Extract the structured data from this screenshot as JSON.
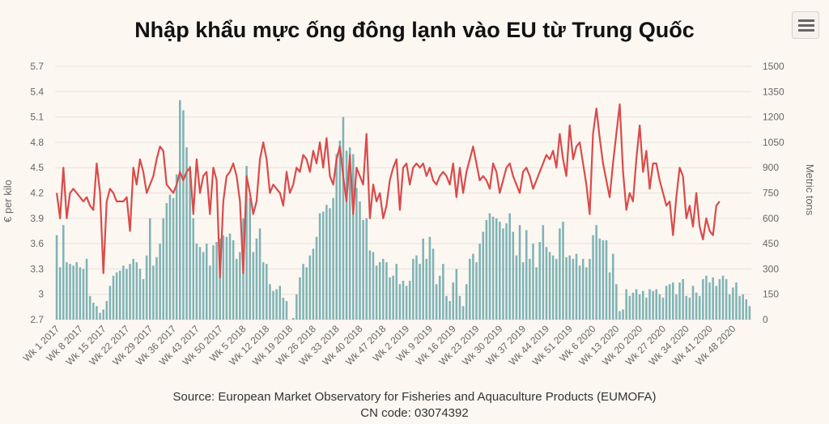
{
  "title": "Nhập khẩu mực ống đông lạnh vào EU từ Trung Quốc",
  "source": "Source: European Market Observatory for Fisheries and Aquaculture Products (EUMOFA)",
  "cn_code": "CN code: 03074392",
  "colors": {
    "bars": "#7fb3b5",
    "line": "#d94b4b",
    "grid": "#e6e1dc",
    "background": "#fdf7f1"
  },
  "icons": {
    "menu": "hamburger-menu-icon"
  },
  "chart_data": {
    "type": "bar",
    "combo": "bar + line, dual y-axis",
    "ylabel_left": "€ per kilo",
    "ylabel_right": "Metric tons",
    "y_left_ticks": [
      "5.7",
      "5.4",
      "5.1",
      "4.8",
      "4.5",
      "4.2",
      "3.9",
      "3.6",
      "3.3",
      "3",
      "2.7"
    ],
    "y_right_ticks": [
      "1500",
      "1350",
      "1200",
      "1050",
      "900",
      "750",
      "600",
      "450",
      "300",
      "150",
      "0"
    ],
    "y_left_range": [
      2.7,
      5.7
    ],
    "y_right_range": [
      0,
      1500
    ],
    "grid": true,
    "x_tick_labels": [
      "Wk 1 2017",
      "Wk 8 2017",
      "Wk 15 2017",
      "Wk 22 2017",
      "Wk 29 2017",
      "Wk 36 2017",
      "Wk 43 2017",
      "Wk 50 2017",
      "Wk 5 2018",
      "Wk 12 2018",
      "Wk 19 2018",
      "Wk 26 2018",
      "Wk 33 2018",
      "Wk 40 2018",
      "Wk 47 2018",
      "Wk 2 2019",
      "Wk 9 2019",
      "Wk 16 2019",
      "Wk 23 2019",
      "Wk 30 2019",
      "Wk 37 2019",
      "Wk 44 2019",
      "Wk 51 2019",
      "Wk 6 2020",
      "Wk 13 2020",
      "Wk 20 2020",
      "Wk 27 2020",
      "Wk 34 2020",
      "Wk 41 2020",
      "Wk 48 2020"
    ],
    "series": [
      {
        "name": "Metric tons",
        "axis": "right",
        "kind": "bar",
        "values": [
          500,
          310,
          560,
          340,
          330,
          320,
          340,
          310,
          300,
          360,
          140,
          100,
          80,
          40,
          60,
          110,
          200,
          260,
          280,
          290,
          320,
          300,
          330,
          360,
          340,
          300,
          240,
          380,
          600,
          320,
          370,
          450,
          600,
          690,
          740,
          720,
          860,
          1300,
          1240,
          1020,
          910,
          600,
          450,
          430,
          400,
          450,
          320,
          440,
          460,
          480,
          500,
          490,
          510,
          470,
          360,
          400,
          600,
          910,
          720,
          400,
          480,
          540,
          340,
          330,
          210,
          170,
          180,
          200,
          130,
          110,
          0,
          10,
          150,
          250,
          330,
          310,
          380,
          420,
          490,
          630,
          640,
          680,
          660,
          720,
          980,
          1060,
          1200,
          1000,
          1020,
          980,
          780,
          700,
          590,
          600,
          410,
          400,
          320,
          340,
          360,
          340,
          250,
          260,
          330,
          210,
          230,
          200,
          230,
          360,
          380,
          330,
          480,
          360,
          490,
          420,
          210,
          260,
          330,
          140,
          110,
          220,
          300,
          140,
          80,
          210,
          360,
          390,
          340,
          450,
          520,
          590,
          630,
          610,
          600,
          580,
          540,
          570,
          630,
          520,
          380,
          560,
          340,
          530,
          360,
          450,
          310,
          460,
          560,
          430,
          400,
          380,
          360,
          540,
          580,
          370,
          380,
          360,
          390,
          320,
          360,
          310,
          360,
          500,
          560,
          480,
          470,
          470,
          280,
          390,
          210,
          50,
          60,
          180,
          140,
          160,
          180,
          150,
          170,
          130,
          180,
          170,
          180,
          150,
          130,
          200,
          210,
          220,
          150,
          220,
          240,
          140,
          130,
          200,
          160,
          140,
          240,
          260,
          220,
          250,
          200,
          240,
          260,
          240,
          150,
          190,
          220,
          140,
          150,
          120,
          80
        ]
      },
      {
        "name": "€ per kilo",
        "axis": "left",
        "kind": "line",
        "values": [
          4.2,
          3.9,
          4.5,
          3.9,
          4.2,
          4.25,
          4.2,
          4.15,
          4.1,
          4.15,
          4.05,
          4.0,
          4.55,
          4.2,
          3.25,
          4.1,
          4.25,
          4.2,
          4.1,
          4.1,
          4.1,
          4.15,
          3.75,
          4.5,
          4.3,
          4.6,
          4.45,
          4.2,
          4.3,
          4.4,
          4.6,
          4.75,
          4.7,
          4.3,
          4.25,
          4.2,
          4.3,
          4.45,
          4.35,
          4.45,
          4.5,
          3.95,
          4.6,
          4.2,
          4.4,
          4.45,
          3.95,
          4.5,
          4.35,
          3.2,
          4.1,
          4.4,
          4.45,
          4.55,
          4.4,
          4.1,
          3.25,
          4.4,
          4.2,
          3.95,
          4.1,
          4.6,
          4.8,
          4.6,
          4.2,
          4.3,
          4.25,
          4.2,
          4.05,
          4.45,
          4.2,
          4.3,
          4.5,
          4.45,
          4.65,
          4.6,
          4.45,
          4.7,
          4.55,
          4.8,
          4.5,
          4.85,
          4.4,
          4.3,
          4.6,
          4.75,
          4.4,
          4.1,
          4.65,
          3.95,
          4.5,
          4.4,
          4.3,
          4.9,
          3.9,
          4.3,
          4.1,
          4.2,
          3.9,
          4.05,
          4.35,
          4.5,
          4.6,
          4.0,
          4.5,
          4.55,
          4.3,
          4.5,
          4.55,
          4.5,
          4.55,
          4.4,
          4.5,
          4.35,
          4.3,
          4.4,
          4.45,
          4.4,
          4.3,
          4.55,
          4.15,
          4.5,
          4.2,
          4.45,
          4.6,
          4.75,
          4.55,
          4.35,
          4.4,
          4.35,
          4.25,
          4.55,
          4.45,
          4.2,
          4.35,
          4.5,
          4.55,
          4.4,
          4.3,
          4.2,
          4.45,
          4.5,
          4.4,
          4.25,
          4.35,
          4.45,
          4.55,
          4.65,
          4.6,
          4.7,
          4.5,
          4.9,
          4.6,
          4.4,
          5.0,
          4.6,
          4.75,
          4.8,
          4.55,
          4.3,
          3.95,
          4.9,
          5.2,
          4.85,
          4.55,
          4.35,
          4.15,
          4.55,
          4.9,
          5.25,
          4.45,
          4.0,
          4.2,
          4.1,
          4.6,
          5.0,
          4.45,
          4.7,
          4.25,
          4.55,
          4.55,
          4.35,
          4.2,
          4.05,
          4.1,
          3.7,
          4.15,
          4.5,
          4.4,
          3.9,
          4.05,
          3.8,
          4.2,
          3.8,
          3.65,
          3.9,
          3.75,
          3.7,
          4.05,
          4.1
        ]
      }
    ]
  }
}
